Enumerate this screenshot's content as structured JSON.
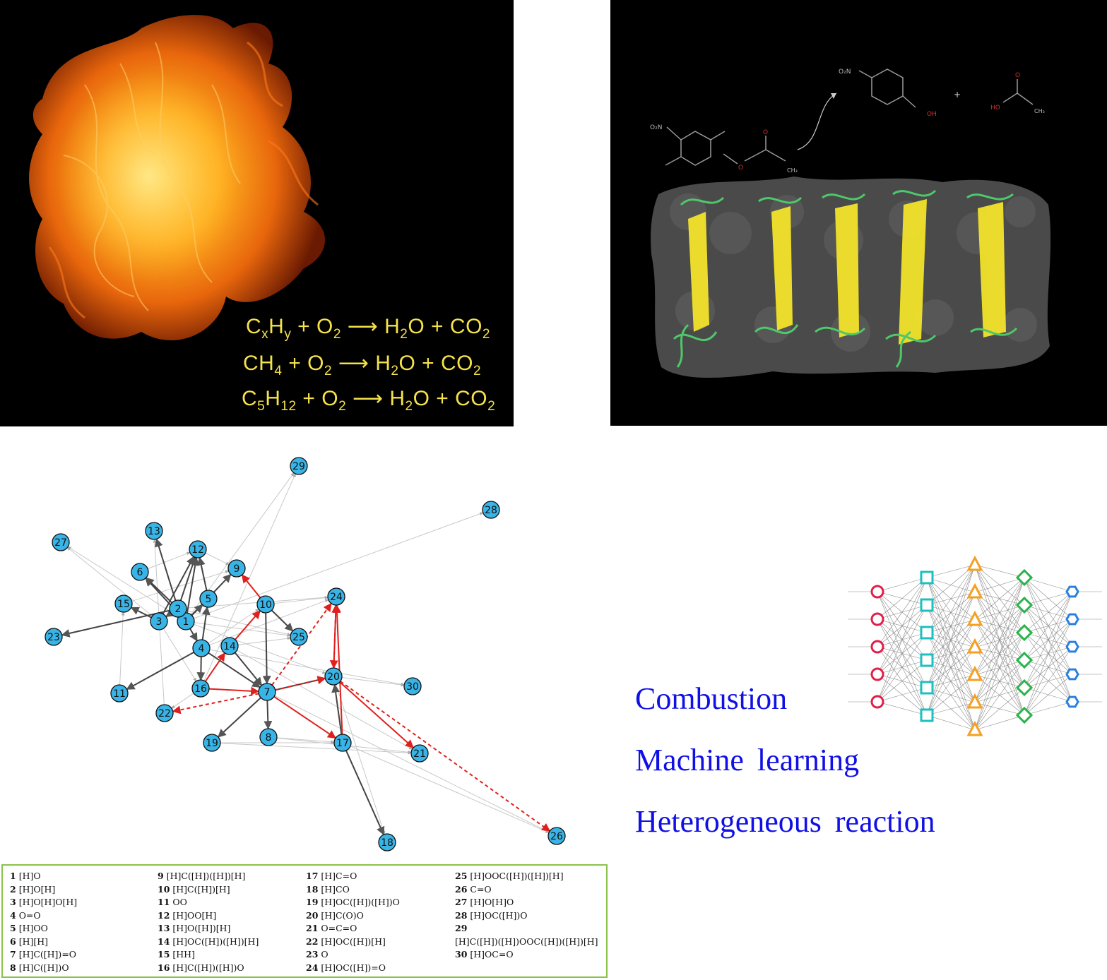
{
  "equations": [
    {
      "parts": [
        "C",
        "x",
        "H",
        "y",
        " + O",
        "2",
        " ⟶  H",
        "2",
        "O + CO",
        "2"
      ]
    },
    {
      "parts": [
        "CH",
        "4",
        " +  O",
        "2",
        "  ⟶  H",
        "2",
        "O +  CO",
        "2"
      ]
    },
    {
      "parts": [
        "C",
        "5",
        "H",
        "12",
        " +  O",
        "2",
        " ⟶ H",
        "2",
        "O +  CO",
        "2"
      ]
    }
  ],
  "reaction_scheme": {
    "reactant_label": "O₂N",
    "product_label": "O₂N",
    "oh_label": "OH",
    "plus": "+",
    "acid_ho": "HO",
    "acid_o": "O",
    "ester_o": "O",
    "ester_o2": "O",
    "ch3": "CH₃"
  },
  "network": {
    "nodes": [
      "1",
      "2",
      "3",
      "4",
      "5",
      "6",
      "7",
      "8",
      "9",
      "10",
      "11",
      "12",
      "13",
      "14",
      "15",
      "16",
      "17",
      "18",
      "19",
      "20",
      "21",
      "22",
      "23",
      "24",
      "25",
      "26",
      "27",
      "28",
      "29",
      "30"
    ]
  },
  "legend": {
    "columns": [
      [
        {
          "num": "1",
          "text": "[H]O"
        },
        {
          "num": "2",
          "text": "[H]O[H]"
        },
        {
          "num": "3",
          "text": "[H]O[H]O[H]"
        },
        {
          "num": "4",
          "text": "O=O"
        },
        {
          "num": "5",
          "text": "[H]OO"
        },
        {
          "num": "6",
          "text": "[H][H]"
        },
        {
          "num": "7",
          "text": "[H]C([H])=O"
        },
        {
          "num": "8",
          "text": "[H]C([H])O"
        }
      ],
      [
        {
          "num": "9",
          "text": "[H]C([H])([H])[H]"
        },
        {
          "num": "10",
          "text": "[H]C([H])[H]"
        },
        {
          "num": "11",
          "text": "OO"
        },
        {
          "num": "12",
          "text": "[H]OO[H]"
        },
        {
          "num": "13",
          "text": "[H]O([H])[H]"
        },
        {
          "num": "14",
          "text": "[H]OC([H])([H])[H]"
        },
        {
          "num": "15",
          "text": "[HH]"
        },
        {
          "num": "16",
          "text": "[H]C([H])([H])O"
        }
      ],
      [
        {
          "num": "17",
          "text": "[H]C=O"
        },
        {
          "num": "18",
          "text": "[H]CO"
        },
        {
          "num": "19",
          "text": "[H]OC([H])([H])O"
        },
        {
          "num": "20",
          "text": "[H]C(O)O"
        },
        {
          "num": "21",
          "text": "O=C=O"
        },
        {
          "num": "22",
          "text": "[H]OC([H])[H]"
        },
        {
          "num": "23",
          "text": "O"
        },
        {
          "num": "24",
          "text": "[H]OC([H])=O"
        }
      ],
      [
        {
          "num": "25",
          "text": "[H]OOC([H])([H])[H]"
        },
        {
          "num": "26",
          "text": "C=O"
        },
        {
          "num": "27",
          "text": "[H]O[H]O"
        },
        {
          "num": "28",
          "text": "[H]OC([H])O"
        },
        {
          "num": "29",
          "text": ""
        },
        {
          "num": "",
          "text": "[H]C([H])([H])OOC([H])([H])[H]"
        },
        {
          "num": "30",
          "text": "[H]OC=O"
        }
      ]
    ]
  },
  "keywords": [
    "Combustion",
    "Machine learning",
    "Heterogeneous reaction"
  ],
  "colors": {
    "node": "#39b4e6",
    "highlight_edge": "#e0201c",
    "keyword": "#1010e6",
    "equation": "#f5e24b",
    "legend_border": "#8bc34a"
  }
}
